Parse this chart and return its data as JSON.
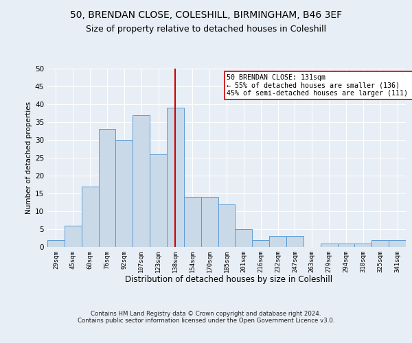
{
  "title_line1": "50, BRENDAN CLOSE, COLESHILL, BIRMINGHAM, B46 3EF",
  "title_line2": "Size of property relative to detached houses in Coleshill",
  "xlabel": "Distribution of detached houses by size in Coleshill",
  "ylabel": "Number of detached properties",
  "bar_labels": [
    "29sqm",
    "45sqm",
    "60sqm",
    "76sqm",
    "92sqm",
    "107sqm",
    "123sqm",
    "138sqm",
    "154sqm",
    "170sqm",
    "185sqm",
    "201sqm",
    "216sqm",
    "232sqm",
    "247sqm",
    "263sqm",
    "279sqm",
    "294sqm",
    "310sqm",
    "325sqm",
    "341sqm"
  ],
  "bar_values": [
    2,
    6,
    17,
    33,
    30,
    37,
    26,
    39,
    14,
    14,
    12,
    5,
    2,
    3,
    3,
    0,
    1,
    1,
    1,
    2,
    2
  ],
  "bar_color": "#c9d9e8",
  "bar_edge_color": "#5b9bd5",
  "annotation_line_x_label": "138sqm",
  "annotation_line_color": "#cc0000",
  "annotation_text": "50 BRENDAN CLOSE: 131sqm\n← 55% of detached houses are smaller (136)\n45% of semi-detached houses are larger (111) →",
  "annotation_box_color": "#ffffff",
  "annotation_box_edge": "#cc0000",
  "ylim": [
    0,
    50
  ],
  "yticks": [
    0,
    5,
    10,
    15,
    20,
    25,
    30,
    35,
    40,
    45,
    50
  ],
  "background_color": "#e8eef5",
  "fig_background_color": "#e8eef5",
  "footer_text": "Contains HM Land Registry data © Crown copyright and database right 2024.\nContains public sector information licensed under the Open Government Licence v3.0.",
  "grid_color": "#ffffff",
  "title_fontsize": 10,
  "subtitle_fontsize": 9,
  "bar_width": 1.0
}
